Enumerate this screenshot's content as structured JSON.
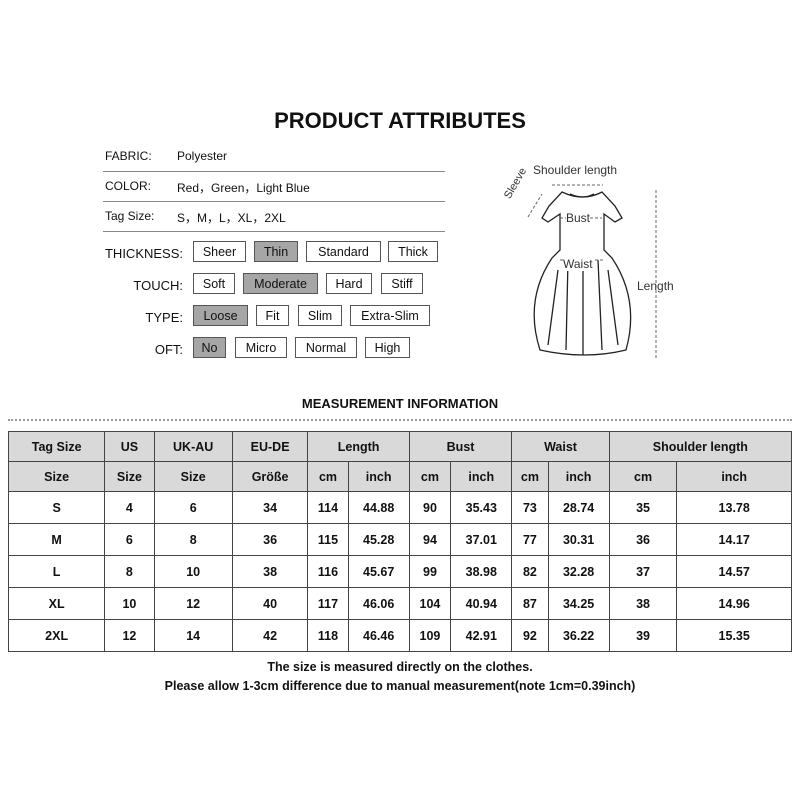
{
  "title": "PRODUCT ATTRIBUTES",
  "attributes": [
    {
      "label": "FABRIC:",
      "value": "Polyester"
    },
    {
      "label": "COLOR:",
      "value": "Red，Green，Light Blue"
    },
    {
      "label": "Tag Size:",
      "value": "S，M，L，XL，2XL"
    }
  ],
  "options": [
    {
      "label": "THICKNESS:",
      "items": [
        "Sheer",
        "Thin",
        "Standard",
        "Thick"
      ],
      "selected": "Thin"
    },
    {
      "label": "TOUCH:",
      "items": [
        "Soft",
        "Moderate",
        "Hard",
        "Stiff"
      ],
      "selected": "Moderate"
    },
    {
      "label": "TYPE:",
      "items": [
        "Loose",
        "Fit",
        "Slim",
        "Extra-Slim"
      ],
      "selected": "Loose"
    },
    {
      "label": "OFT:",
      "items": [
        "No",
        "Micro",
        "Normal",
        "High"
      ],
      "selected": "No"
    }
  ],
  "diagram": {
    "shoulder": "Shoulder length",
    "sleeve": "Sleeve",
    "bust": "Bust",
    "waist": "Waist",
    "length": "Length"
  },
  "measurement_title": "MEASUREMENT INFORMATION",
  "table": {
    "header1": [
      "Tag Size",
      "US",
      "UK-AU",
      "EU-DE",
      "Length",
      "Bust",
      "Waist",
      "Shoulder length"
    ],
    "header2": [
      "Size",
      "Size",
      "Size",
      "Größe",
      "cm",
      "inch",
      "cm",
      "inch",
      "cm",
      "inch",
      "cm",
      "inch"
    ],
    "rows": [
      [
        "S",
        "4",
        "6",
        "34",
        "114",
        "44.88",
        "90",
        "35.43",
        "73",
        "28.74",
        "35",
        "13.78"
      ],
      [
        "M",
        "6",
        "8",
        "36",
        "115",
        "45.28",
        "94",
        "37.01",
        "77",
        "30.31",
        "36",
        "14.17"
      ],
      [
        "L",
        "8",
        "10",
        "38",
        "116",
        "45.67",
        "99",
        "38.98",
        "82",
        "32.28",
        "37",
        "14.57"
      ],
      [
        "XL",
        "10",
        "12",
        "40",
        "117",
        "46.06",
        "104",
        "40.94",
        "87",
        "34.25",
        "38",
        "14.96"
      ],
      [
        "2XL",
        "12",
        "14",
        "42",
        "118",
        "46.46",
        "109",
        "42.91",
        "92",
        "36.22",
        "39",
        "15.35"
      ]
    ]
  },
  "notes": [
    "The size is measured directly on the clothes.",
    "Please allow 1-3cm difference due to manual measurement(note 1cm=0.39inch)"
  ]
}
